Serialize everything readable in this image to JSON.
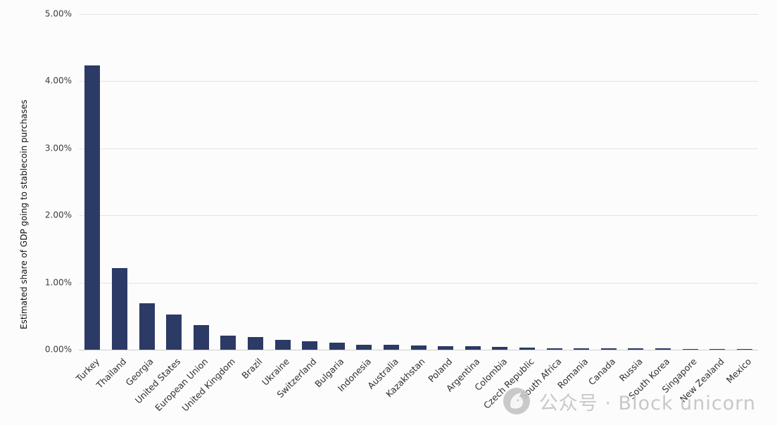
{
  "chart_data": {
    "type": "bar",
    "title": "",
    "xlabel": "",
    "ylabel": "Estimated share of GDP going to stablecoin purchases",
    "ylim": [
      0,
      5
    ],
    "grid": true,
    "gridline_color": "#e4e4e4",
    "bar_color": "#2c3a66",
    "yticks": [
      {
        "label": "0.00%",
        "value": 0
      },
      {
        "label": "1.00%",
        "value": 1
      },
      {
        "label": "2.00%",
        "value": 2
      },
      {
        "label": "3.00%",
        "value": 3
      },
      {
        "label": "4.00%",
        "value": 4
      },
      {
        "label": "5.00%",
        "value": 5
      }
    ],
    "categories": [
      "Turkey",
      "Thailand",
      "Georgia",
      "United States",
      "European Union",
      "United Kingdom",
      "Brazil",
      "Ukraine",
      "Switzerland",
      "Bulgaria",
      "Indonesia",
      "Australia",
      "Kazakhstan",
      "Poland",
      "Argentina",
      "Colombia",
      "Czech Republic",
      "South Africa",
      "Romania",
      "Canada",
      "Russia",
      "South Korea",
      "Singapore",
      "New Zealand",
      "Mexico"
    ],
    "values": [
      4.23,
      1.22,
      0.69,
      0.52,
      0.37,
      0.21,
      0.19,
      0.15,
      0.13,
      0.1,
      0.07,
      0.07,
      0.06,
      0.05,
      0.05,
      0.04,
      0.035,
      0.025,
      0.022,
      0.02,
      0.02,
      0.02,
      0.012,
      0.006,
      0.005
    ]
  },
  "watermark": {
    "text": "公众号 · Block unicorn",
    "color": "#c8c8c8"
  }
}
